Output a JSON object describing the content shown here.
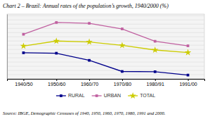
{
  "chart_data": {
    "type": "line",
    "title": "Chart 2 – Brazil: Annual rates of the population’s growth, 1940/2000 (%)",
    "annotations": [
      "Source: IBGE, Demographic Censuses of 1940, 1950, 1960, 1970, 1980, 1991 and 2000."
    ],
    "categories": [
      "1940/50",
      "1950/60",
      "1960/70",
      "1970/80",
      "1980/91",
      "1991/00"
    ],
    "series": [
      {
        "name": "RURAL",
        "color": "#00008B",
        "marker": "square",
        "values": [
          1.6,
          1.55,
          0.7,
          -0.62,
          -0.65,
          -1.05
        ]
      },
      {
        "name": "URBAN",
        "color": "#C060A0",
        "marker": "square",
        "values": [
          3.8,
          5.2,
          5.1,
          4.44,
          2.97,
          2.43
        ]
      },
      {
        "name": "TOTAL",
        "color": "#CCCC00",
        "marker": "star",
        "values": [
          2.4,
          3.0,
          2.89,
          2.48,
          1.93,
          1.63
        ]
      }
    ],
    "ylim": [
      -1.5,
      6.2
    ],
    "yticks": [
      -1.5,
      -1.0,
      -0.5,
      0,
      0.5,
      1.0,
      1.5,
      2.0,
      2.5,
      3.0,
      3.5,
      4.0,
      4.5,
      5.0,
      5.5,
      6.0
    ],
    "grid": true,
    "tick_labels": "x",
    "legend": "bottom"
  }
}
